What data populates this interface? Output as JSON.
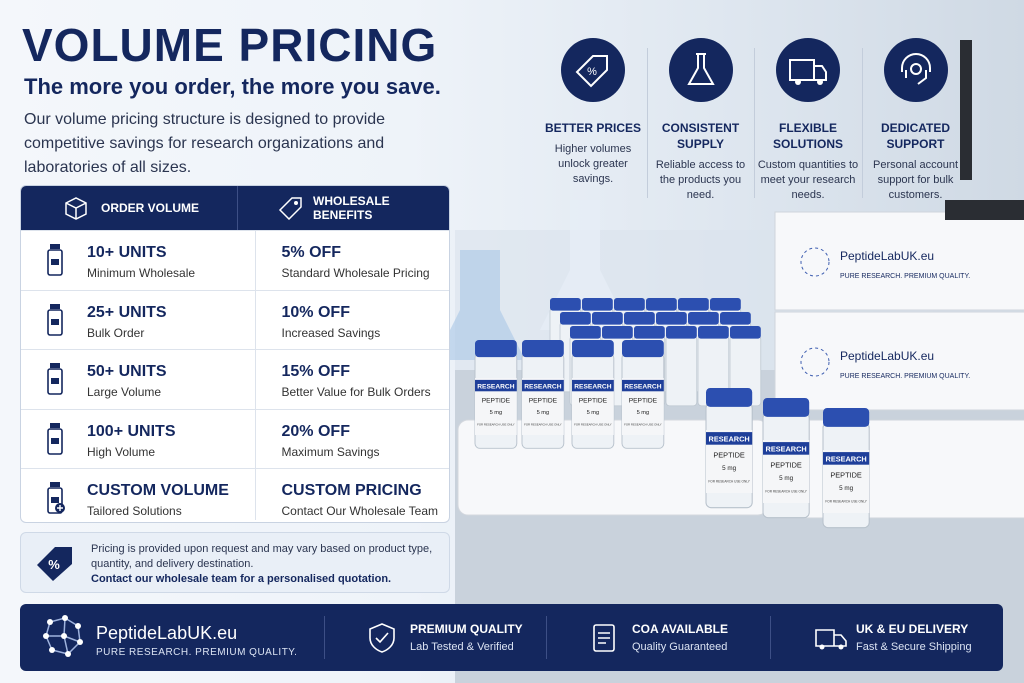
{
  "header": {
    "title": "VOLUME PRICING",
    "subtitle": "The more you order, the more you save.",
    "description": "Our volume pricing structure is designed to provide competitive savings for research organizations and laboratories of all sizes."
  },
  "features": [
    {
      "title": "BETTER PRICES",
      "text": "Higher volumes unlock greater savings."
    },
    {
      "title": "CONSISTENT SUPPLY",
      "text": "Reliable access to the products you need."
    },
    {
      "title": "FLEXIBLE SOLUTIONS",
      "text": "Custom quantities to meet your research needs."
    },
    {
      "title": "DEDICATED SUPPORT",
      "text": "Personal account support for bulk customers."
    }
  ],
  "table": {
    "columns": [
      "ORDER VOLUME",
      "WHOLESALE BENEFITS"
    ],
    "rows": [
      [
        {
          "title": "10+ UNITS",
          "subtitle": "Minimum Wholesale"
        },
        {
          "title": "5% OFF",
          "subtitle": "Standard Wholesale Pricing"
        }
      ],
      [
        {
          "title": "25+ UNITS",
          "subtitle": "Bulk Order"
        },
        {
          "title": "10% OFF",
          "subtitle": "Increased Savings"
        }
      ],
      [
        {
          "title": "50+ UNITS",
          "subtitle": "Large Volume"
        },
        {
          "title": "15% OFF",
          "subtitle": "Better Value for Bulk Orders"
        }
      ],
      [
        {
          "title": "100+ UNITS",
          "subtitle": "High Volume"
        },
        {
          "title": "20% OFF",
          "subtitle": "Maximum Savings"
        }
      ],
      [
        {
          "title": "CUSTOM VOLUME",
          "subtitle": "Tailored Solutions"
        },
        {
          "title": "CUSTOM PRICING",
          "subtitle": "Contact Our Wholesale Team"
        }
      ]
    ]
  },
  "note": {
    "text": "Pricing is provided upon request and may vary based on product type, quantity, and delivery destination.",
    "emphasis": "Contact our wholesale team for a personalised quotation."
  },
  "footer": {
    "brand": "PeptideLabUK.eu",
    "tagline": "PURE RESEARCH. PREMIUM QUALITY.",
    "badges": [
      {
        "title": "PREMIUM QUALITY",
        "text": "Lab Tested & Verified"
      },
      {
        "title": "COA AVAILABLE",
        "text": "Quality Guaranteed"
      },
      {
        "title": "UK & EU DELIVERY",
        "text": "Fast & Secure Shipping"
      }
    ]
  },
  "product_image": {
    "vial_band": "RESEARCH",
    "vial_name": "PEPTIDE",
    "vial_dose": "5 mg",
    "vial_note": "FOR RESEARCH USE ONLY"
  }
}
